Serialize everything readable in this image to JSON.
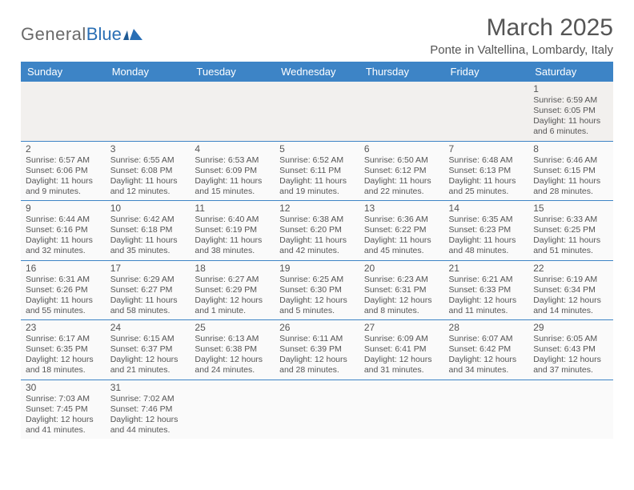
{
  "logo": {
    "word1": "General",
    "word2": "Blue"
  },
  "title": {
    "month": "March 2025",
    "location": "Ponte in Valtellina, Lombardy, Italy"
  },
  "colors": {
    "header_bg": "#3d84c6",
    "header_text": "#ffffff",
    "border": "#3d84c6",
    "body_text": "#555555",
    "logo_gray": "#6a6a6a",
    "logo_blue": "#2a6fb5",
    "cell_bg": "#fafafa",
    "empty_bg": "#f2f0ee"
  },
  "weekdays": [
    "Sunday",
    "Monday",
    "Tuesday",
    "Wednesday",
    "Thursday",
    "Friday",
    "Saturday"
  ],
  "weeks": [
    [
      null,
      null,
      null,
      null,
      null,
      null,
      {
        "n": "1",
        "sr": "Sunrise: 6:59 AM",
        "ss": "Sunset: 6:05 PM",
        "dl": "Daylight: 11 hours and 6 minutes."
      }
    ],
    [
      {
        "n": "2",
        "sr": "Sunrise: 6:57 AM",
        "ss": "Sunset: 6:06 PM",
        "dl": "Daylight: 11 hours and 9 minutes."
      },
      {
        "n": "3",
        "sr": "Sunrise: 6:55 AM",
        "ss": "Sunset: 6:08 PM",
        "dl": "Daylight: 11 hours and 12 minutes."
      },
      {
        "n": "4",
        "sr": "Sunrise: 6:53 AM",
        "ss": "Sunset: 6:09 PM",
        "dl": "Daylight: 11 hours and 15 minutes."
      },
      {
        "n": "5",
        "sr": "Sunrise: 6:52 AM",
        "ss": "Sunset: 6:11 PM",
        "dl": "Daylight: 11 hours and 19 minutes."
      },
      {
        "n": "6",
        "sr": "Sunrise: 6:50 AM",
        "ss": "Sunset: 6:12 PM",
        "dl": "Daylight: 11 hours and 22 minutes."
      },
      {
        "n": "7",
        "sr": "Sunrise: 6:48 AM",
        "ss": "Sunset: 6:13 PM",
        "dl": "Daylight: 11 hours and 25 minutes."
      },
      {
        "n": "8",
        "sr": "Sunrise: 6:46 AM",
        "ss": "Sunset: 6:15 PM",
        "dl": "Daylight: 11 hours and 28 minutes."
      }
    ],
    [
      {
        "n": "9",
        "sr": "Sunrise: 6:44 AM",
        "ss": "Sunset: 6:16 PM",
        "dl": "Daylight: 11 hours and 32 minutes."
      },
      {
        "n": "10",
        "sr": "Sunrise: 6:42 AM",
        "ss": "Sunset: 6:18 PM",
        "dl": "Daylight: 11 hours and 35 minutes."
      },
      {
        "n": "11",
        "sr": "Sunrise: 6:40 AM",
        "ss": "Sunset: 6:19 PM",
        "dl": "Daylight: 11 hours and 38 minutes."
      },
      {
        "n": "12",
        "sr": "Sunrise: 6:38 AM",
        "ss": "Sunset: 6:20 PM",
        "dl": "Daylight: 11 hours and 42 minutes."
      },
      {
        "n": "13",
        "sr": "Sunrise: 6:36 AM",
        "ss": "Sunset: 6:22 PM",
        "dl": "Daylight: 11 hours and 45 minutes."
      },
      {
        "n": "14",
        "sr": "Sunrise: 6:35 AM",
        "ss": "Sunset: 6:23 PM",
        "dl": "Daylight: 11 hours and 48 minutes."
      },
      {
        "n": "15",
        "sr": "Sunrise: 6:33 AM",
        "ss": "Sunset: 6:25 PM",
        "dl": "Daylight: 11 hours and 51 minutes."
      }
    ],
    [
      {
        "n": "16",
        "sr": "Sunrise: 6:31 AM",
        "ss": "Sunset: 6:26 PM",
        "dl": "Daylight: 11 hours and 55 minutes."
      },
      {
        "n": "17",
        "sr": "Sunrise: 6:29 AM",
        "ss": "Sunset: 6:27 PM",
        "dl": "Daylight: 11 hours and 58 minutes."
      },
      {
        "n": "18",
        "sr": "Sunrise: 6:27 AM",
        "ss": "Sunset: 6:29 PM",
        "dl": "Daylight: 12 hours and 1 minute."
      },
      {
        "n": "19",
        "sr": "Sunrise: 6:25 AM",
        "ss": "Sunset: 6:30 PM",
        "dl": "Daylight: 12 hours and 5 minutes."
      },
      {
        "n": "20",
        "sr": "Sunrise: 6:23 AM",
        "ss": "Sunset: 6:31 PM",
        "dl": "Daylight: 12 hours and 8 minutes."
      },
      {
        "n": "21",
        "sr": "Sunrise: 6:21 AM",
        "ss": "Sunset: 6:33 PM",
        "dl": "Daylight: 12 hours and 11 minutes."
      },
      {
        "n": "22",
        "sr": "Sunrise: 6:19 AM",
        "ss": "Sunset: 6:34 PM",
        "dl": "Daylight: 12 hours and 14 minutes."
      }
    ],
    [
      {
        "n": "23",
        "sr": "Sunrise: 6:17 AM",
        "ss": "Sunset: 6:35 PM",
        "dl": "Daylight: 12 hours and 18 minutes."
      },
      {
        "n": "24",
        "sr": "Sunrise: 6:15 AM",
        "ss": "Sunset: 6:37 PM",
        "dl": "Daylight: 12 hours and 21 minutes."
      },
      {
        "n": "25",
        "sr": "Sunrise: 6:13 AM",
        "ss": "Sunset: 6:38 PM",
        "dl": "Daylight: 12 hours and 24 minutes."
      },
      {
        "n": "26",
        "sr": "Sunrise: 6:11 AM",
        "ss": "Sunset: 6:39 PM",
        "dl": "Daylight: 12 hours and 28 minutes."
      },
      {
        "n": "27",
        "sr": "Sunrise: 6:09 AM",
        "ss": "Sunset: 6:41 PM",
        "dl": "Daylight: 12 hours and 31 minutes."
      },
      {
        "n": "28",
        "sr": "Sunrise: 6:07 AM",
        "ss": "Sunset: 6:42 PM",
        "dl": "Daylight: 12 hours and 34 minutes."
      },
      {
        "n": "29",
        "sr": "Sunrise: 6:05 AM",
        "ss": "Sunset: 6:43 PM",
        "dl": "Daylight: 12 hours and 37 minutes."
      }
    ],
    [
      {
        "n": "30",
        "sr": "Sunrise: 7:03 AM",
        "ss": "Sunset: 7:45 PM",
        "dl": "Daylight: 12 hours and 41 minutes."
      },
      {
        "n": "31",
        "sr": "Sunrise: 7:02 AM",
        "ss": "Sunset: 7:46 PM",
        "dl": "Daylight: 12 hours and 44 minutes."
      },
      null,
      null,
      null,
      null,
      null
    ]
  ]
}
